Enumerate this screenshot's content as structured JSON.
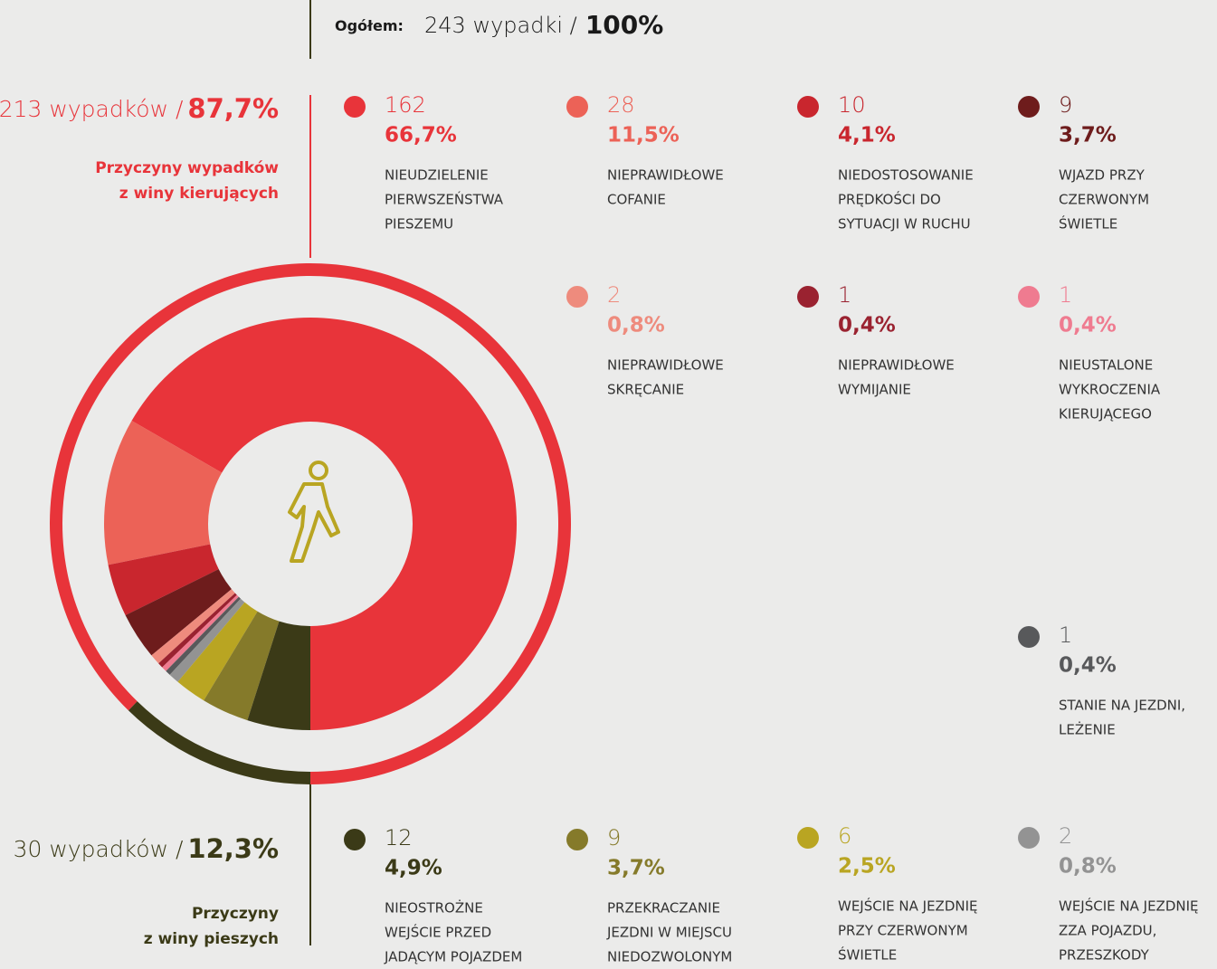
{
  "chart_data": {
    "type": "donut",
    "header": {
      "label": "Ogółem:",
      "total": "243 wypadki /",
      "share": "100%"
    },
    "groups": [
      {
        "count_label": "213 wypadków /",
        "value": 87.7,
        "value_label": "87,7%",
        "name": [
          "Przyczyny wypadków",
          "z winy kierujących"
        ],
        "color": "#e8343a"
      },
      {
        "count_label": "30 wypadków /",
        "value": 12.3,
        "value_label": "12,3%",
        "name": [
          "Przyczyny",
          "z winy pieszych"
        ],
        "color": "#3b3a17"
      }
    ],
    "series": [
      {
        "name": [
          "NIEUDZIELENIE",
          "PIERWSZEŃSTWA",
          "PIESZEMU"
        ],
        "color": "#e8343a",
        "value": 162,
        "share": 66.7,
        "share_label": "66,7%"
      },
      {
        "name": [
          "NIEPRAWIDŁOWE",
          "COFANIE"
        ],
        "color": "#ec6257",
        "value": 28,
        "share": 11.5,
        "share_label": "11,5%"
      },
      {
        "name": [
          "NIEDOSTOSOWANIE",
          "PRĘDKOŚCI DO",
          "SYTUACJI W RUCHU"
        ],
        "color": "#c9262e",
        "value": 10,
        "share": 4.1,
        "share_label": "4,1%"
      },
      {
        "name": [
          "WJAZD PRZY",
          "CZERWONYM",
          "ŚWIETLE"
        ],
        "color": "#6e1c1c",
        "value": 9,
        "share": 3.7,
        "share_label": "3,7%"
      },
      {
        "name": [
          "NIEPRAWIDŁOWE",
          "SKRĘCANIE"
        ],
        "color": "#ee8b7d",
        "value": 2,
        "share": 0.8,
        "share_label": "0,8%"
      },
      {
        "name": [
          "NIEPRAWIDŁOWE",
          "WYMIJANIE"
        ],
        "color": "#9a2230",
        "value": 1,
        "share": 0.4,
        "share_label": "0,4%"
      },
      {
        "name": [
          "NIEUSTALONE",
          "WYKROCZENIA",
          "KIERUJĄCEGO"
        ],
        "color": "#ef7b90",
        "value": 1,
        "share": 0.4,
        "share_label": "0,4%"
      },
      {
        "name": [
          "STANIE NA JEZDNI,",
          "LEŻENIE"
        ],
        "color": "#58595b",
        "value": 1,
        "share": 0.4,
        "share_label": "0,4%"
      },
      {
        "name": [
          "WEJŚCIE NA JEZDNIĘ",
          "ZZA POJAZDU,",
          "PRZESZKODY"
        ],
        "color": "#939393",
        "value": 2,
        "share": 0.8,
        "share_label": "0,8%"
      },
      {
        "name": [
          "WEJŚCIE NA JEZDNIĘ",
          "PRZY CZERWONYM",
          "ŚWIETLE"
        ],
        "color": "#b9a522",
        "value": 6,
        "share": 2.5,
        "share_label": "2,5%"
      },
      {
        "name": [
          "PRZEKRACZANIE",
          "JEZDNI W MIEJSCU",
          "NIEDOZWOLONYM"
        ],
        "color": "#857a2a",
        "value": 9,
        "share": 3.7,
        "share_label": "3,7%"
      },
      {
        "name": [
          "NIEOSTROŻNE",
          "WEJŚCIE PRZED",
          "JADĄCYM POJAZDEM"
        ],
        "color": "#3b3a17",
        "value": 12,
        "share": 4.9,
        "share_label": "4,9%"
      }
    ]
  }
}
